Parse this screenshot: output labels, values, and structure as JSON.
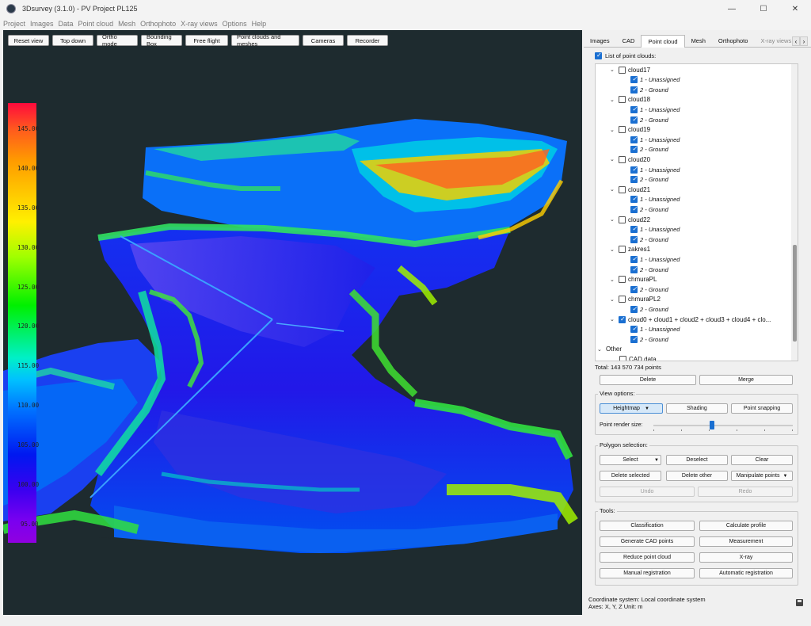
{
  "window": {
    "title": "3Dsurvey (3.1.0) - PV Project PL125",
    "minimize": "—",
    "maximize": "☐",
    "close": "✕"
  },
  "menu": [
    "Project",
    "Images",
    "Data",
    "Point cloud",
    "Mesh",
    "Orthophoto",
    "X-ray views",
    "Options",
    "Help"
  ],
  "toolbar": [
    "Reset view",
    "Top down",
    "Ortho mode",
    "Bounding Box",
    "Free flight",
    "Point clouds and meshes",
    "Cameras",
    "Recorder"
  ],
  "colorbar": {
    "labels": [
      "145.00",
      "140.00",
      "135.00",
      "130.00",
      "125.00",
      "120.00",
      "115.00",
      "110.00",
      "105.00",
      "100.00",
      "95.00"
    ]
  },
  "tabs": [
    "Images",
    "CAD",
    "Point cloud",
    "Mesh",
    "Orthophoto",
    "X-ray views"
  ],
  "active_tab": "Point cloud",
  "point_cloud_panel": {
    "list_label": "List of point clouds:",
    "tree": [
      {
        "label": "cloud17",
        "checked": false,
        "children": [
          {
            "label": "1 - Unassigned",
            "checked": true
          },
          {
            "label": "2 - Ground",
            "checked": true
          }
        ]
      },
      {
        "label": "cloud18",
        "checked": false,
        "children": [
          {
            "label": "1 - Unassigned",
            "checked": true
          },
          {
            "label": "2 - Ground",
            "checked": true
          }
        ]
      },
      {
        "label": "cloud19",
        "checked": false,
        "children": [
          {
            "label": "1 - Unassigned",
            "checked": true
          },
          {
            "label": "2 - Ground",
            "checked": true
          }
        ]
      },
      {
        "label": "cloud20",
        "checked": false,
        "children": [
          {
            "label": "1 - Unassigned",
            "checked": true
          },
          {
            "label": "2 - Ground",
            "checked": true
          }
        ]
      },
      {
        "label": "cloud21",
        "checked": false,
        "children": [
          {
            "label": "1 - Unassigned",
            "checked": true
          },
          {
            "label": "2 - Ground",
            "checked": true
          }
        ]
      },
      {
        "label": "cloud22",
        "checked": false,
        "children": [
          {
            "label": "1 - Unassigned",
            "checked": true
          },
          {
            "label": "2 - Ground",
            "checked": true
          }
        ]
      },
      {
        "label": "zakres1",
        "checked": false,
        "children": [
          {
            "label": "1 - Unassigned",
            "checked": true
          },
          {
            "label": "2 - Ground",
            "checked": true
          }
        ]
      },
      {
        "label": "chmuraPL",
        "checked": false,
        "children": [
          {
            "label": "2 - Ground",
            "checked": true
          }
        ]
      },
      {
        "label": "chmuraPL2",
        "checked": false,
        "children": [
          {
            "label": "2 - Ground",
            "checked": true
          }
        ]
      },
      {
        "label": "cloud0 + cloud1 + cloud2 + cloud3 + cloud4 + clo...",
        "checked": true,
        "children": [
          {
            "label": "1 - Unassigned",
            "checked": true
          },
          {
            "label": "2 - Ground",
            "checked": true
          }
        ]
      }
    ],
    "other_label": "Other",
    "cad_label": "CAD data",
    "total": "Total: 143 570 734 points",
    "delete": "Delete",
    "merge": "Merge"
  },
  "view_options": {
    "title": "View options:",
    "heightmap": "Heightmap",
    "shading": "Shading",
    "point_snapping": "Point snapping",
    "point_render_size_label": "Point render size:",
    "point_render_size": 0.42
  },
  "polygon_selection": {
    "title": "Polygon selection:",
    "select": "Select",
    "deselect": "Deselect",
    "clear": "Clear",
    "delete_selected": "Delete selected",
    "delete_other": "Delete other",
    "manipulate_points": "Manipulate points",
    "undo": "Undo",
    "redo": "Redo"
  },
  "tools": {
    "title": "Tools:",
    "classification": "Classification",
    "calculate_profile": "Calculate profile",
    "generate_cad_points": "Generate CAD points",
    "measurement": "Measurement",
    "reduce_point_cloud": "Reduce point cloud",
    "xray": "X-ray",
    "manual_registration": "Manual registration",
    "automatic_registration": "Automatic registration"
  },
  "footer": {
    "coordinate_system": "Coordinate system: Local coordinate system",
    "axes": "Axes: X, Y, Z Unit: m"
  },
  "colors": {
    "accent": "#1a6fd1",
    "viewport_bg": "#1e2b2f"
  }
}
